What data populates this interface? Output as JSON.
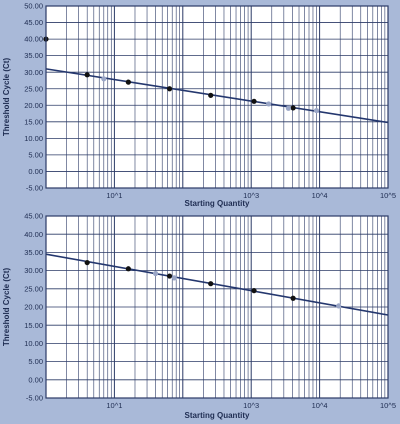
{
  "colors": {
    "background": "#a9b9d8",
    "plot_bg": "#ffffff",
    "grid": "#2b3a66",
    "text": "#1f2d52",
    "fit_line": "#24376e",
    "standard_point": "#111111",
    "unknown_point": "#9aa6c6"
  },
  "chart_data": [
    {
      "type": "scatter",
      "xlabel": "Starting Quantity",
      "ylabel": "Threshold Cycle (Ct)",
      "xscale": "log",
      "xlim": [
        1,
        100000
      ],
      "ylim": [
        -5,
        50
      ],
      "ytick_step": 5,
      "yticks": [
        "-5.00",
        "0.00",
        "5.00",
        "10.00",
        "15.00",
        "20.00",
        "25.00",
        "30.00",
        "35.00",
        "40.00",
        "45.00",
        "50.00"
      ],
      "xticks": [
        {
          "value": 10,
          "label": "10^1"
        },
        {
          "value": 1000,
          "label": "10^3"
        },
        {
          "value": 10000,
          "label": "10^4"
        },
        {
          "value": 100000,
          "label": "10^5"
        }
      ],
      "grid": true,
      "fit_line": {
        "x": [
          1,
          100000
        ],
        "y": [
          31,
          14.8
        ]
      },
      "series": [
        {
          "role": "standard",
          "points": [
            {
              "x": 1,
              "y": 40
            },
            {
              "x": 4,
              "y": 29.2
            },
            {
              "x": 16,
              "y": 27
            },
            {
              "x": 64,
              "y": 25
            },
            {
              "x": 256,
              "y": 23
            },
            {
              "x": 1100,
              "y": 21.2
            },
            {
              "x": 4100,
              "y": 19.2
            }
          ]
        },
        {
          "role": "unknown",
          "points": [
            {
              "x": 7,
              "y": 28
            },
            {
              "x": 1800,
              "y": 20.4
            },
            {
              "x": 3500,
              "y": 19.1
            },
            {
              "x": 9000,
              "y": 18.4
            }
          ]
        }
      ]
    },
    {
      "type": "scatter",
      "xlabel": "Starting Quantity",
      "ylabel": "Threshold Cycle (Ct)",
      "xscale": "log",
      "xlim": [
        1,
        100000
      ],
      "ylim": [
        -5,
        45
      ],
      "ytick_step": 5,
      "yticks": [
        "-5.00",
        "0.00",
        "5.00",
        "10.00",
        "15.00",
        "20.00",
        "25.00",
        "30.00",
        "35.00",
        "40.00",
        "45.00"
      ],
      "xticks": [
        {
          "value": 10,
          "label": "10^1"
        },
        {
          "value": 1000,
          "label": "10^3"
        },
        {
          "value": 10000,
          "label": "10^4"
        },
        {
          "value": 100000,
          "label": "10^5"
        }
      ],
      "grid": true,
      "fit_line": {
        "x": [
          1,
          100000
        ],
        "y": [
          34.5,
          17.8
        ]
      },
      "series": [
        {
          "role": "standard",
          "points": [
            {
              "x": 4,
              "y": 32.2
            },
            {
              "x": 16,
              "y": 30.5
            },
            {
              "x": 64,
              "y": 28.5
            },
            {
              "x": 256,
              "y": 26.4
            },
            {
              "x": 1100,
              "y": 24.5
            },
            {
              "x": 4100,
              "y": 22.4
            }
          ]
        },
        {
          "role": "unknown",
          "points": [
            {
              "x": 40,
              "y": 29.2
            },
            {
              "x": 75,
              "y": 28
            },
            {
              "x": 19000,
              "y": 20.3
            }
          ]
        }
      ]
    }
  ]
}
